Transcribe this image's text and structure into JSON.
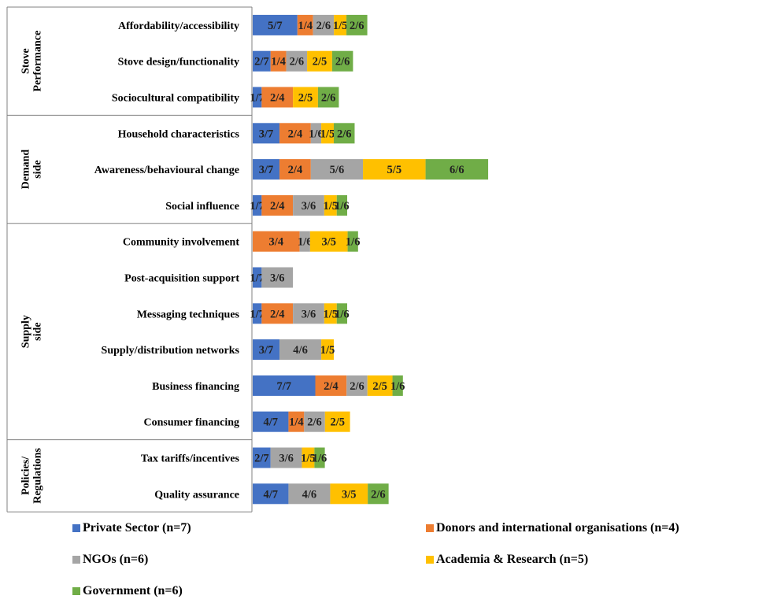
{
  "chart_data": {
    "type": "bar",
    "orientation": "horizontal",
    "stacked": true,
    "title": "",
    "xlabel": "",
    "ylabel": "",
    "groups": [
      {
        "label": "Stove Performance",
        "categories": [
          "Affordability/accessibility",
          "Stove design/functionality",
          "Sociocultural compatibility"
        ]
      },
      {
        "label": "Demand side",
        "categories": [
          "Household characteristics",
          "Awareness/behavioural change",
          "Social influence"
        ]
      },
      {
        "label": "Supply side",
        "categories": [
          "Community involvement",
          "Post-acquisition support",
          "Messaging techniques",
          "Supply/distribution networks",
          "Business financing",
          "Consumer financing"
        ]
      },
      {
        "label": "Policies/ Regulations",
        "categories": [
          "Tax tariffs/incentives",
          "Quality assurance"
        ]
      }
    ],
    "categories": [
      "Affordability/accessibility",
      "Stove design/functionality",
      "Sociocultural compatibility",
      "Household characteristics",
      "Awareness/behavioural change",
      "Social influence",
      "Community involvement",
      "Post-acquisition support",
      "Messaging techniques",
      "Supply/distribution networks",
      "Business financing",
      "Consumer financing",
      "Tax tariffs/incentives",
      "Quality assurance"
    ],
    "series": [
      {
        "name": "Private Sector (n=7)",
        "n": 7,
        "color": "#4472C4",
        "values": [
          5,
          2,
          1,
          3,
          3,
          1,
          0,
          1,
          1,
          3,
          7,
          4,
          2,
          4
        ]
      },
      {
        "name": "Donors and international organisations (n=4)",
        "n": 4,
        "color": "#ED7D31",
        "values": [
          1,
          1,
          2,
          2,
          2,
          2,
          3,
          0,
          2,
          0,
          2,
          1,
          0,
          0
        ]
      },
      {
        "name": "NGOs (n=6)",
        "n": 6,
        "color": "#A5A5A5",
        "values": [
          2,
          2,
          0,
          1,
          5,
          3,
          1,
          3,
          3,
          4,
          2,
          2,
          3,
          4
        ]
      },
      {
        "name": "Academia & Research (n=5)",
        "n": 5,
        "color": "#FFC000",
        "values": [
          1,
          2,
          2,
          1,
          5,
          1,
          3,
          0,
          1,
          1,
          2,
          2,
          1,
          3
        ]
      },
      {
        "name": "Government (n=6)",
        "n": 6,
        "color": "#70AD47",
        "values": [
          2,
          2,
          2,
          2,
          6,
          1,
          1,
          0,
          1,
          0,
          1,
          0,
          1,
          2
        ]
      }
    ],
    "bar_label_format": "value/n",
    "grid": false,
    "legend_position": "bottom"
  }
}
